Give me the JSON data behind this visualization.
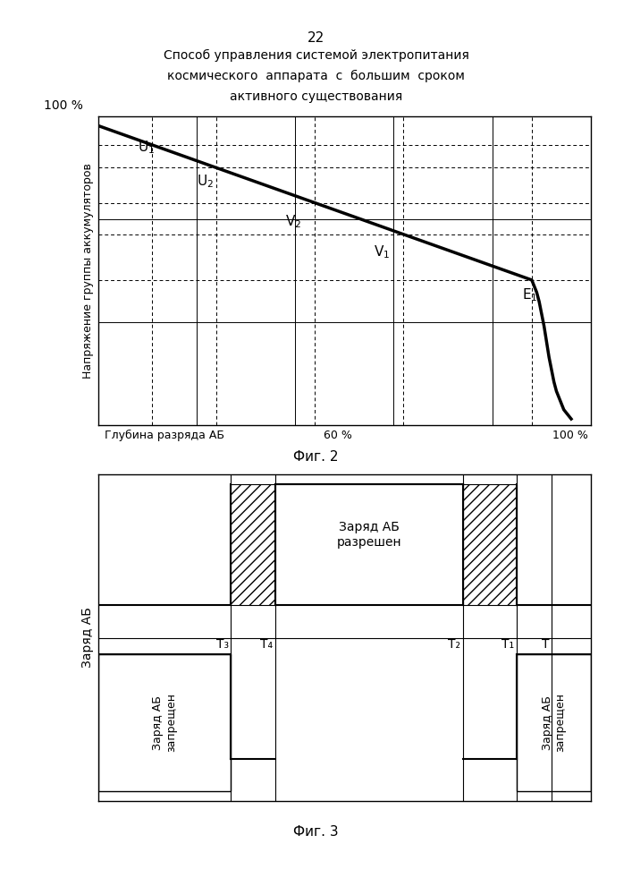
{
  "page_number": "22",
  "title_line1": "Способ управления системой электропитания",
  "title_line2": "космического  аппарата  с  большим  сроком",
  "title_line3": "активного существования",
  "fig2_ylabel": "Напряжение группы аккумуляторов",
  "fig2_xlabel_left": "Глубина разряда АБ",
  "fig2_xlabel_60": "60 %",
  "fig2_xlabel_100": "100 %",
  "fig2_ytop_label": "100 %",
  "fig2_caption": "Фиг. 2",
  "fig3_ylabel": "Заряд АБ",
  "fig3_caption": "Фиг. 3",
  "fig3_label_center": "Заряд АБ\nразрешен",
  "fig3_label_left": "Заряд АБ\nзапрещен",
  "fig3_label_right": "Заряд АБ\nзапрещен",
  "fig3_T3": "T₃",
  "fig3_T4": "T₄",
  "fig3_T2": "T₂",
  "fig3_T1": "T₁",
  "fig3_T": "T",
  "bg_color": "#ffffff",
  "line_color": "#000000"
}
